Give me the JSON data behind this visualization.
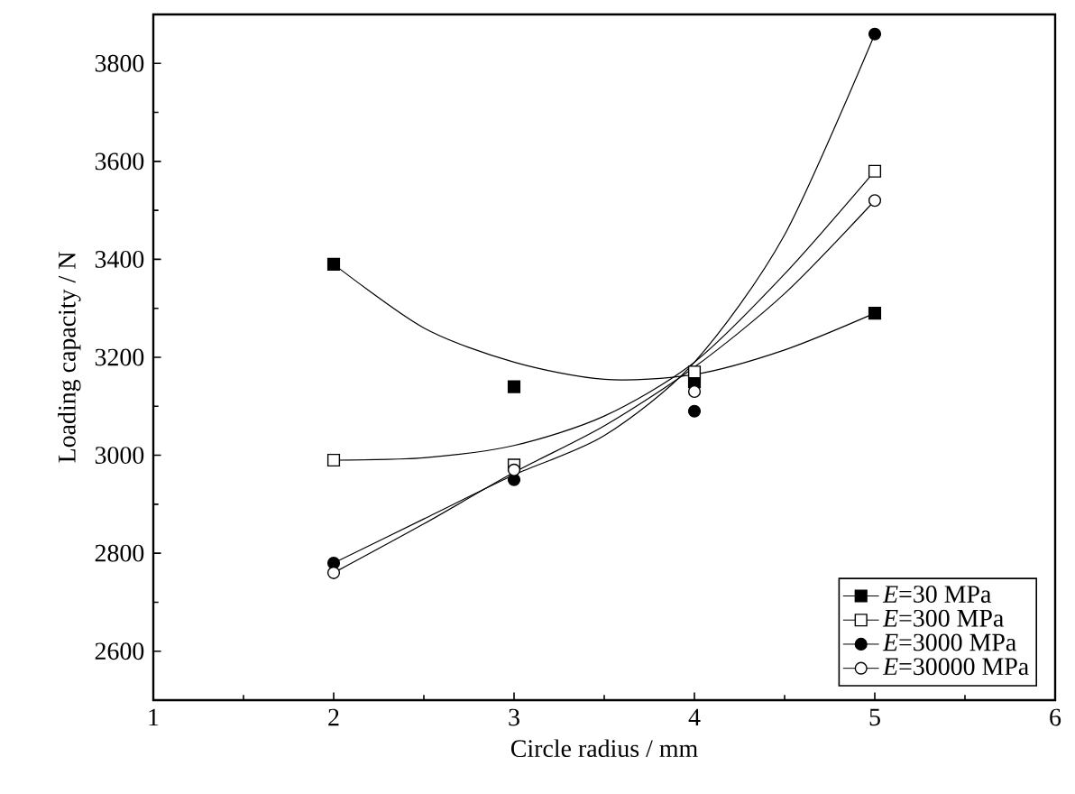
{
  "chart_data": {
    "type": "scatter",
    "xlabel": "Circle radius / mm",
    "ylabel": "Loading capacity / N",
    "xlim": [
      1,
      6
    ],
    "xticks": [
      1,
      2,
      3,
      4,
      5,
      6
    ],
    "ylim": [
      2500,
      3900
    ],
    "yticks": [
      2600,
      2800,
      3000,
      3200,
      3400,
      3600,
      3800
    ],
    "legend": "bottom right",
    "grid": false,
    "series": [
      {
        "name": "*E*=30 MPa",
        "color": "#000000",
        "marker": "square",
        "x": [
          2,
          3,
          4,
          5
        ],
        "values": [
          3390,
          3140,
          3150,
          3290
        ]
      },
      {
        "name": "*E*=300 MPa",
        "color": "#ffffff",
        "marker": "square",
        "x": [
          2,
          3,
          4,
          5
        ],
        "values": [
          2990,
          2980,
          3170,
          3580
        ]
      },
      {
        "name": "*E*=3000 MPa",
        "color": "#000000",
        "marker": "circle",
        "x": [
          2,
          3,
          4,
          5
        ],
        "values": [
          2780,
          2950,
          3090,
          3860
        ]
      },
      {
        "name": "*E*=30000 MPa",
        "color": "#ffffff",
        "marker": "circle",
        "x": [
          2,
          3,
          4,
          5
        ],
        "values": [
          2760,
          2970,
          3130,
          3520
        ]
      },
      {
        "type": "line",
        "color": "#000000",
        "x": [
          2,
          2.5,
          3,
          3.5,
          4,
          4.5,
          5
        ],
        "values": [
          3390,
          3260,
          3190,
          3155,
          3165,
          3215,
          3290
        ]
      },
      {
        "type": "line",
        "color": "#000000",
        "x": [
          2,
          2.5,
          3,
          3.5,
          4,
          4.5,
          5
        ],
        "values": [
          2990,
          2995,
          3020,
          3080,
          3190,
          3370,
          3580
        ]
      },
      {
        "type": "line",
        "color": "#000000",
        "x": [
          2,
          2.5,
          3,
          3.5,
          4,
          4.5,
          5
        ],
        "values": [
          2780,
          2870,
          2960,
          3040,
          3190,
          3450,
          3860
        ]
      },
      {
        "type": "line",
        "color": "#000000",
        "x": [
          2,
          2.5,
          3,
          3.5,
          4,
          4.5,
          5
        ],
        "values": [
          2760,
          2860,
          2965,
          3060,
          3180,
          3330,
          3520
        ]
      }
    ]
  }
}
